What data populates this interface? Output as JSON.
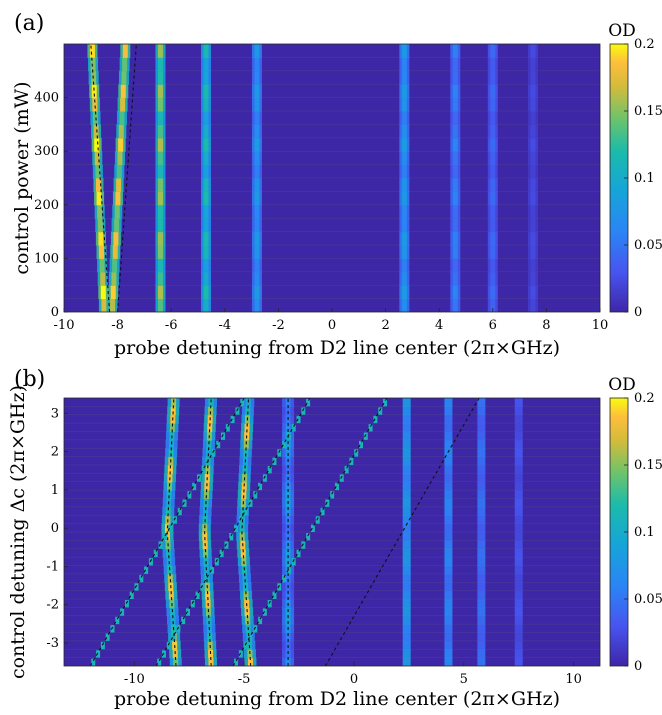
{
  "chart_data": [
    {
      "panel_label": "(a)",
      "type": "heatmap",
      "xlabel": "probe detuning from D2 line center (2π×GHz)",
      "ylabel": "control power (mW)",
      "xlim": [
        -10,
        10
      ],
      "ylim": [
        0,
        500
      ],
      "x_ticks": [
        -10,
        -8,
        -6,
        -4,
        -2,
        0,
        2,
        4,
        6,
        8,
        10
      ],
      "y_ticks": [
        0,
        100,
        200,
        300,
        400
      ],
      "colorbar": {
        "title": "OD",
        "range": [
          0,
          0.2
        ],
        "ticks": [
          0,
          0.05,
          0.1,
          0.15,
          0.2
        ]
      },
      "absorption_lines": [
        {
          "center": -8.5,
          "slope_per_100mW": -0.09,
          "strength": 1.0
        },
        {
          "center": -8.2,
          "slope_per_100mW": 0.1,
          "strength": 0.95
        },
        {
          "center": -6.4,
          "slope_per_100mW": 0.0,
          "strength": 0.8
        },
        {
          "center": -4.7,
          "slope_per_100mW": 0.0,
          "strength": 0.6
        },
        {
          "center": -2.8,
          "slope_per_100mW": 0.0,
          "strength": 0.4
        },
        {
          "center": 2.7,
          "slope_per_100mW": 0.0,
          "strength": 0.4
        },
        {
          "center": 4.6,
          "slope_per_100mW": 0.0,
          "strength": 0.3
        },
        {
          "center": 6.0,
          "slope_per_100mW": 0.0,
          "strength": 0.22
        },
        {
          "center": 7.5,
          "slope_per_100mW": 0.0,
          "strength": 0.12
        }
      ],
      "dashed_fit_lines": [
        {
          "x_at_ymin": -8.3,
          "x_at_ymax": -9.0
        },
        {
          "x_at_ymin": -8.0,
          "x_at_ymax": -7.3
        }
      ]
    },
    {
      "panel_label": "(b)",
      "type": "heatmap",
      "xlabel": "probe detuning from D2 line center (2π×GHz)",
      "ylabel": "control detuning Δc (2π×GHz)",
      "xlim": [
        -13.2,
        11.2
      ],
      "ylim": [
        -3.6,
        3.4
      ],
      "x_ticks": [
        -10,
        -5,
        0,
        5,
        10
      ],
      "y_ticks": [
        -3,
        -2,
        -1,
        0,
        1,
        2,
        3
      ],
      "colorbar": {
        "title": "OD",
        "range": [
          0,
          0.2
        ],
        "ticks": [
          0,
          0.05,
          0.1,
          0.15,
          0.2
        ]
      },
      "diagonal_fit_lines": [
        {
          "x_at_ymin": -12.0,
          "x_at_ymax": -5.0
        },
        {
          "x_at_ymin": -9.0,
          "x_at_ymax": -2.0
        },
        {
          "x_at_ymin": -5.5,
          "x_at_ymax": 1.5
        },
        {
          "x_at_ymin": -1.3,
          "x_at_ymax": 5.7
        }
      ],
      "vertical_fit_lines": [
        {
          "x_top": -8.2,
          "x_mid": -8.5,
          "x_bottom": -8.1
        },
        {
          "x_top": -6.5,
          "x_mid": -6.8,
          "x_bottom": -6.5
        },
        {
          "x_top": -4.8,
          "x_mid": -5.1,
          "x_bottom": -4.7
        },
        {
          "x_top": -3.0,
          "x_mid": -3.0,
          "x_bottom": -3.0
        }
      ],
      "static_lines": [
        {
          "center": 2.4,
          "strength": 0.4
        },
        {
          "center": 4.3,
          "strength": 0.32
        },
        {
          "center": 5.8,
          "strength": 0.25
        },
        {
          "center": 7.5,
          "strength": 0.15
        }
      ]
    }
  ]
}
